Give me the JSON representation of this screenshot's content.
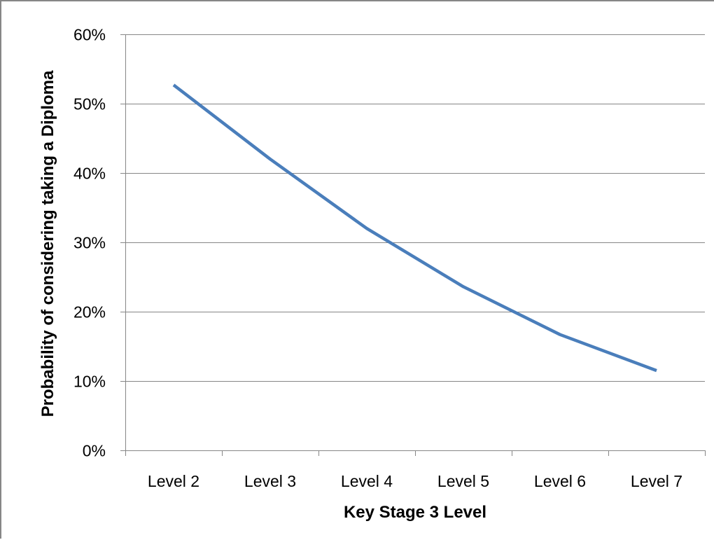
{
  "chart_data": {
    "type": "line",
    "title": "",
    "xlabel": "Key Stage 3 Level",
    "ylabel": "Probability of considering taking a Diploma",
    "categories": [
      "Level 2",
      "Level 3",
      "Level 4",
      "Level 5",
      "Level 6",
      "Level 7"
    ],
    "series": [
      {
        "values": [
          0.527,
          0.42,
          0.32,
          0.236,
          0.167,
          0.115
        ],
        "color": "#4a7ebb"
      }
    ],
    "ylim": [
      0,
      0.6
    ],
    "yticks": [
      0,
      0.1,
      0.2,
      0.3,
      0.4,
      0.5,
      0.6
    ],
    "ytick_labels": [
      "0%",
      "10%",
      "20%",
      "30%",
      "40%",
      "50%",
      "60%"
    ],
    "grid": true,
    "gridline_color": "#868686",
    "legend": "none"
  }
}
